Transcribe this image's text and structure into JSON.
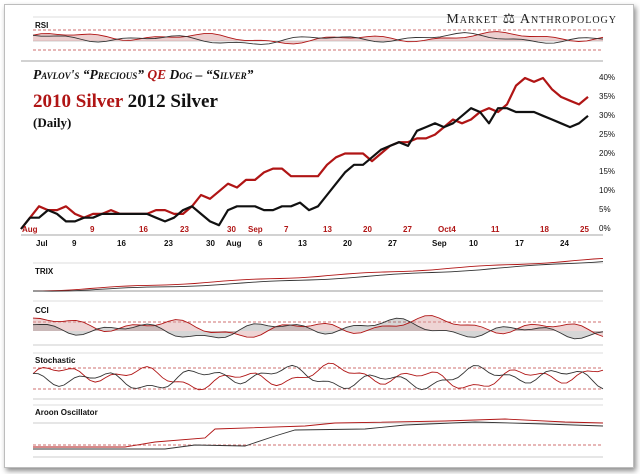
{
  "brand": "Market ⚖ Anthropology",
  "title": {
    "line1_a": "Pavlov's “Precious” ",
    "line1_b": "QE",
    "line1_c": " Dog – “Silver”",
    "line2_a": "2010 Silver",
    "line2_b": " 2012 Silver",
    "line3": "(Daily)"
  },
  "panels": {
    "rsi": "RSI",
    "trix": "TRIX",
    "cci": "CCI",
    "stoch": "Stochastic",
    "aroon": "Aroon Oscillator"
  },
  "colors": {
    "s2010": "#b01515",
    "s2012": "#111111",
    "red_label": "#b01515"
  },
  "chart_data": {
    "type": "line",
    "title": "Pavlov's “Precious” QE Dog – “Silver”",
    "y_ticks": [
      "0%",
      "5%",
      "10%",
      "15%",
      "20%",
      "25%",
      "30%",
      "35%",
      "40%"
    ],
    "ylim": [
      -3,
      42
    ],
    "grid": false,
    "x_axis_2010": [
      "Aug",
      "9",
      "16",
      "23",
      "30",
      "Sep",
      "7",
      "13",
      "20",
      "27",
      "Oct4",
      "11",
      "18",
      "25"
    ],
    "x_axis_2012": [
      "Jul",
      "9",
      "16",
      "23",
      "30",
      "Aug",
      "6",
      "13",
      "20",
      "27",
      "Sep",
      "10",
      "17",
      "24"
    ],
    "series": [
      {
        "name": "2010 Silver",
        "color": "#b01515",
        "values": [
          0,
          3,
          6,
          5,
          5,
          6,
          4,
          3,
          4,
          4,
          5,
          4,
          4,
          4,
          4,
          5,
          5,
          4,
          4,
          6,
          9,
          8,
          10,
          12,
          11,
          13,
          13,
          15,
          16,
          16,
          14,
          14,
          14,
          14,
          17,
          19,
          20,
          20,
          20,
          18,
          20,
          22,
          23,
          23,
          24,
          24,
          25,
          27,
          29,
          28,
          29,
          31,
          32,
          31,
          33,
          38,
          40,
          39,
          40,
          37,
          35,
          34,
          33,
          35
        ]
      },
      {
        "name": "2012 Silver",
        "color": "#111111",
        "values": [
          0,
          3,
          3,
          5,
          4,
          2,
          2,
          3,
          3,
          4,
          4,
          4,
          4,
          4,
          4,
          3,
          2,
          3,
          5,
          6,
          4,
          2,
          1,
          5,
          6,
          6,
          6,
          5,
          5,
          6,
          6,
          7,
          5,
          6,
          9,
          12,
          15,
          17,
          17,
          19,
          21,
          22,
          23,
          22,
          26,
          27,
          28,
          27,
          28,
          30,
          32,
          31,
          28,
          32,
          32,
          31,
          31,
          31,
          30,
          29,
          28,
          27,
          28,
          30
        ]
      }
    ]
  }
}
